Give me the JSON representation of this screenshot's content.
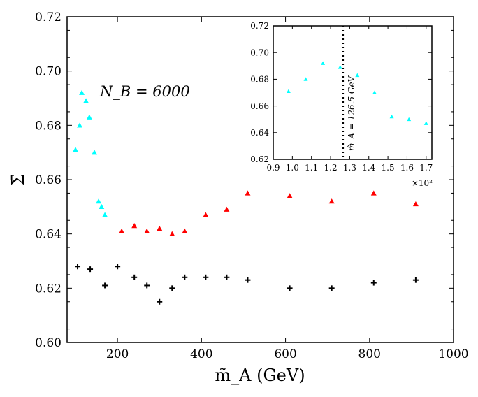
{
  "chart_data": [
    {
      "type": "scatter",
      "title": "",
      "xlabel": "m̃_A (GeV)",
      "ylabel": "Σ̄",
      "xlim": [
        80,
        1000
      ],
      "ylim": [
        0.6,
        0.72
      ],
      "x_ticks": [
        "200",
        "400",
        "600",
        "800",
        "1000"
      ],
      "y_ticks": [
        "0.60",
        "0.62",
        "0.64",
        "0.66",
        "0.68",
        "0.70",
        "0.72"
      ],
      "grid": false,
      "annotation": "N_B = 6000",
      "series": [
        {
          "marker": "triangle",
          "color": "#00ffff",
          "points": [
            {
              "x": 100,
              "y": 0.671
            },
            {
              "x": 110,
              "y": 0.68
            },
            {
              "x": 115,
              "y": 0.692
            },
            {
              "x": 125,
              "y": 0.689
            },
            {
              "x": 133,
              "y": 0.683
            },
            {
              "x": 145,
              "y": 0.67
            },
            {
              "x": 155,
              "y": 0.652
            },
            {
              "x": 162,
              "y": 0.65
            },
            {
              "x": 170,
              "y": 0.647
            }
          ]
        },
        {
          "marker": "triangle",
          "color": "#ff0000",
          "points": [
            {
              "x": 210,
              "y": 0.641
            },
            {
              "x": 240,
              "y": 0.643
            },
            {
              "x": 270,
              "y": 0.641
            },
            {
              "x": 300,
              "y": 0.642
            },
            {
              "x": 330,
              "y": 0.64
            },
            {
              "x": 360,
              "y": 0.641
            },
            {
              "x": 410,
              "y": 0.647
            },
            {
              "x": 460,
              "y": 0.649
            },
            {
              "x": 510,
              "y": 0.655
            },
            {
              "x": 610,
              "y": 0.654
            },
            {
              "x": 710,
              "y": 0.652
            },
            {
              "x": 810,
              "y": 0.655
            },
            {
              "x": 910,
              "y": 0.651
            }
          ]
        },
        {
          "marker": "plus",
          "color": "#000000",
          "points": [
            {
              "x": 105,
              "y": 0.628
            },
            {
              "x": 135,
              "y": 0.627
            },
            {
              "x": 170,
              "y": 0.621
            },
            {
              "x": 200,
              "y": 0.628
            },
            {
              "x": 240,
              "y": 0.624
            },
            {
              "x": 270,
              "y": 0.621
            },
            {
              "x": 300,
              "y": 0.615
            },
            {
              "x": 330,
              "y": 0.62
            },
            {
              "x": 360,
              "y": 0.624
            },
            {
              "x": 410,
              "y": 0.624
            },
            {
              "x": 460,
              "y": 0.624
            },
            {
              "x": 510,
              "y": 0.623
            },
            {
              "x": 610,
              "y": 0.62
            },
            {
              "x": 710,
              "y": 0.62
            },
            {
              "x": 810,
              "y": 0.622
            },
            {
              "x": 910,
              "y": 0.623
            }
          ]
        }
      ]
    },
    {
      "type": "scatter",
      "title": "",
      "xlabel": "",
      "ylabel": "",
      "xlim": [
        0.9,
        1.73
      ],
      "ylim": [
        0.62,
        0.72
      ],
      "x_ticks": [
        "0.9",
        "1.0",
        "1.1",
        "1.2",
        "1.3",
        "1.4",
        "1.5",
        "1.6",
        "1.7"
      ],
      "y_ticks": [
        "0.62",
        "0.64",
        "0.66",
        "0.68",
        "0.70",
        "0.72"
      ],
      "x_scale_label": "×10²",
      "grid": false,
      "vline": {
        "x": 1.265,
        "label": "m̃_A = 126.5 GeV"
      },
      "series": [
        {
          "marker": "triangle",
          "color": "#00ffff",
          "points": [
            {
              "x": 0.98,
              "y": 0.671
            },
            {
              "x": 1.07,
              "y": 0.68
            },
            {
              "x": 1.16,
              "y": 0.692
            },
            {
              "x": 1.25,
              "y": 0.689
            },
            {
              "x": 1.34,
              "y": 0.683
            },
            {
              "x": 1.43,
              "y": 0.67
            },
            {
              "x": 1.52,
              "y": 0.652
            },
            {
              "x": 1.61,
              "y": 0.65
            },
            {
              "x": 1.7,
              "y": 0.647
            }
          ]
        }
      ]
    }
  ]
}
